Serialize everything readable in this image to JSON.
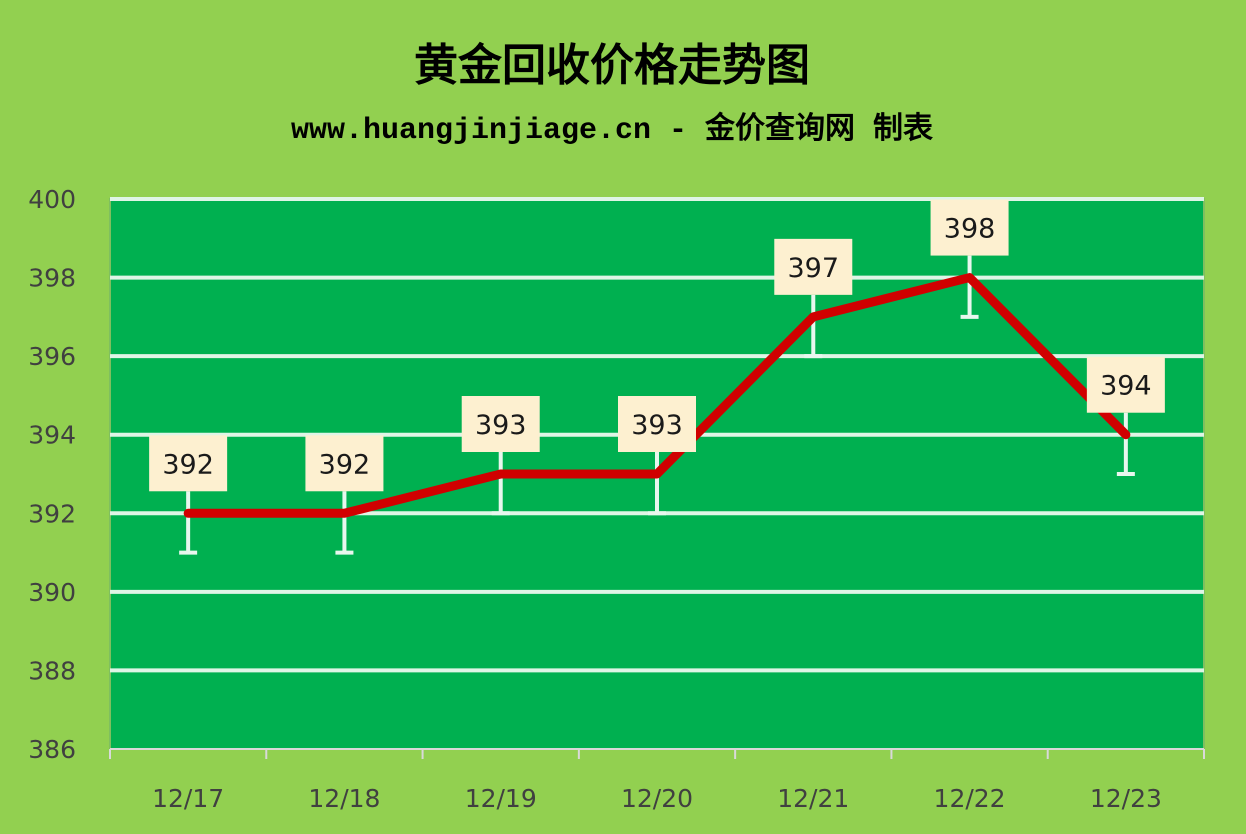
{
  "chart_data": {
    "type": "line",
    "title": "黄金回收价格走势图",
    "subtitle": "www.huangjinjiage.cn - 金价查询网 制表",
    "xlabel": "",
    "ylabel": "",
    "categories": [
      "12/17",
      "12/18",
      "12/19",
      "12/20",
      "12/21",
      "12/22",
      "12/23"
    ],
    "values": [
      392,
      392,
      393,
      393,
      397,
      398,
      394
    ],
    "data_labels": [
      "392",
      "392",
      "393",
      "393",
      "397",
      "398",
      "394"
    ],
    "error_bar_minus": 1,
    "ylim": [
      386,
      400
    ],
    "yticks": [
      "386",
      "388",
      "390",
      "392",
      "394",
      "396",
      "398",
      "400"
    ],
    "grid": true,
    "legend": "none",
    "colors": {
      "background": "#92d050",
      "plot_area": "#00b050",
      "gridline": "#dff5e6",
      "line": "#d00000",
      "label_box": "#fdf0d0"
    }
  }
}
